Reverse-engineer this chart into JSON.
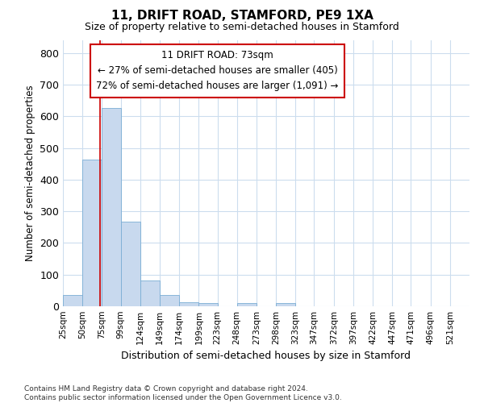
{
  "title": "11, DRIFT ROAD, STAMFORD, PE9 1XA",
  "subtitle": "Size of property relative to semi-detached houses in Stamford",
  "xlabel": "Distribution of semi-detached houses by size in Stamford",
  "ylabel": "Number of semi-detached properties",
  "bar_left_edges": [
    25,
    50,
    75,
    99,
    124,
    149,
    174,
    199,
    223,
    248,
    273,
    298,
    323,
    347,
    372,
    397,
    422,
    447,
    471,
    496
  ],
  "bar_widths": [
    25,
    25,
    24,
    25,
    25,
    25,
    25,
    24,
    25,
    25,
    25,
    25,
    24,
    25,
    25,
    25,
    25,
    24,
    25,
    25
  ],
  "bar_heights": [
    36,
    463,
    625,
    267,
    82,
    35,
    14,
    11,
    0,
    11,
    0,
    9,
    0,
    0,
    0,
    0,
    0,
    0,
    0,
    0
  ],
  "bar_color": "#c8d9ee",
  "bar_edge_color": "#7aadd4",
  "property_line_x": 73,
  "property_line_color": "#cc0000",
  "annotation_line1": "11 DRIFT ROAD: 73sqm",
  "annotation_line2": "← 27% of semi-detached houses are smaller (405)",
  "annotation_line3": "72% of semi-detached houses are larger (1,091) →",
  "annotation_box_color": "#cc0000",
  "annotation_text_color": "#000000",
  "ylim": [
    0,
    840
  ],
  "yticks": [
    0,
    100,
    200,
    300,
    400,
    500,
    600,
    700,
    800
  ],
  "x_tick_labels": [
    "25sqm",
    "50sqm",
    "75sqm",
    "99sqm",
    "124sqm",
    "149sqm",
    "174sqm",
    "199sqm",
    "223sqm",
    "248sqm",
    "273sqm",
    "298sqm",
    "323sqm",
    "347sqm",
    "372sqm",
    "397sqm",
    "422sqm",
    "447sqm",
    "471sqm",
    "496sqm",
    "521sqm"
  ],
  "x_tick_positions": [
    25,
    50,
    75,
    99,
    124,
    149,
    174,
    199,
    223,
    248,
    273,
    298,
    323,
    347,
    372,
    397,
    422,
    447,
    471,
    496,
    521
  ],
  "footer_text": "Contains HM Land Registry data © Crown copyright and database right 2024.\nContains public sector information licensed under the Open Government Licence v3.0.",
  "background_color": "#ffffff",
  "grid_color": "#ccddee",
  "xlim": [
    25,
    546
  ]
}
